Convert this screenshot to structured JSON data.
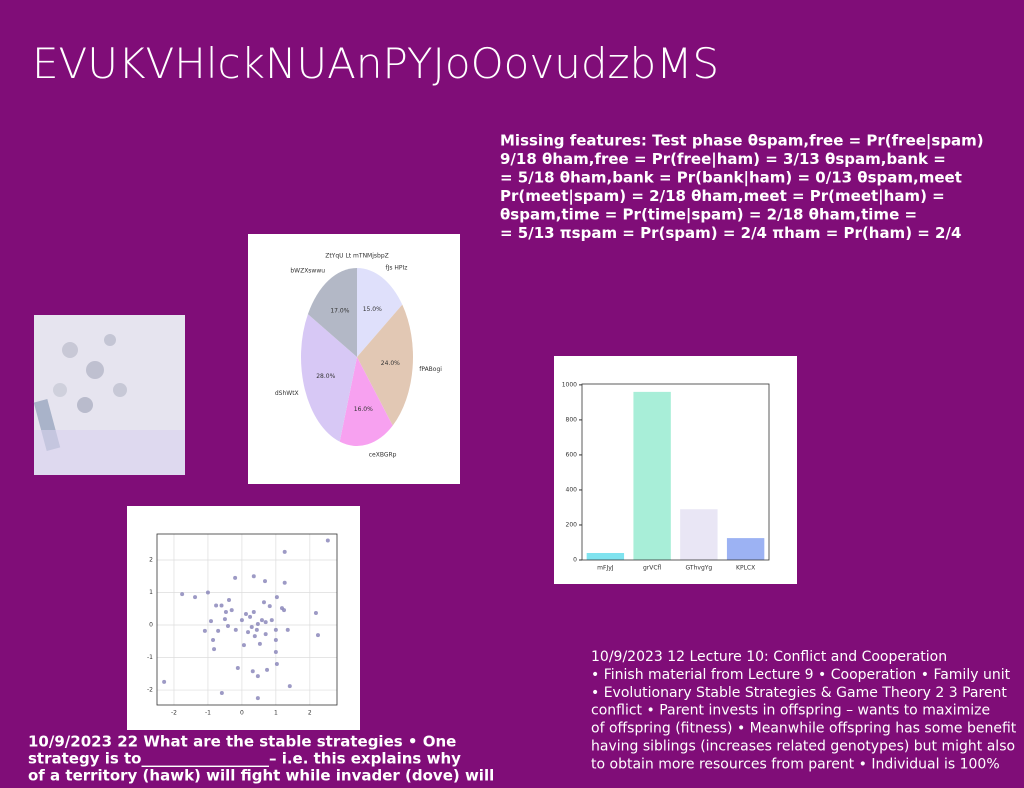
{
  "title": "EVUKVHlckNUAnPYJoOovudzbMS",
  "text_top_right": [
    "Missing features: Test phase θspam,free = Pr(free|spam)",
    "9/18 θham,free = Pr(free|ham) = 3/13 θspam,bank =",
    "= 5/18 θham,bank = Pr(bank|ham) = 0/13 θspam,meet",
    "Pr(meet|spam) = 2/18 θham,meet = Pr(meet|ham) =",
    "θspam,time = Pr(time|spam) = 2/18 θham,time =",
    "= 5/13 πspam = Pr(spam) = 2/4 πham = Pr(ham) = 2/4"
  ],
  "text_bottom_left": [
    "10/9/2023 22 What are the stable strategies • One",
    "strategy is to_________________– i.e. this explains why",
    "of a territory (hawk) will fight while invader (dove) will"
  ],
  "text_bottom_right": [
    "10/9/2023 12 Lecture 10: Conflict and Cooperation",
    "• Finish material from Lecture 9 • Cooperation • Family unit",
    "• Evolutionary Stable Strategies & Game Theory 2 3 Parent",
    "conflict • Parent invests in offspring – wants to maximize",
    "of offspring (fitness) • Meanwhile offspring has some benefit",
    "having siblings (increases related genotypes) but might also",
    "to obtain more resources from parent • Individual is 100%"
  ],
  "chart_data": [
    {
      "type": "pie",
      "title": "ZtYqU  Lt  mTNMjsbpZ",
      "categories": [
        "fJs HPIz",
        "fPABogi",
        "ceXBGRp",
        "dShWtX",
        "bWZXswwu"
      ],
      "values": [
        15.0,
        24.0,
        16.0,
        28.0,
        17.0
      ],
      "value_labels": [
        "15.0%",
        "24.0%",
        "16.0%",
        "28.0%",
        "17.0%"
      ],
      "colors": [
        "#dfe0fb",
        "#e2c8b4",
        "#f7a1f0",
        "#d7c8f5",
        "#b3b8c6"
      ]
    },
    {
      "type": "bar",
      "categories": [
        "mFJyJ",
        "grVCfl",
        "GThvgYg",
        "KPLCX"
      ],
      "values": [
        40,
        960,
        290,
        125
      ],
      "colors": [
        "#7fe3ef",
        "#a8eed8",
        "#e9e6f5",
        "#9cb2f3"
      ],
      "ylim": [
        0,
        1005
      ],
      "yticks": [
        0,
        200,
        400,
        600,
        800,
        1000
      ]
    },
    {
      "type": "scatter",
      "color": "#8c88bb",
      "grid": true,
      "xlim": [
        -2.5,
        2.8
      ],
      "ylim": [
        -2.46,
        2.8
      ],
      "xticks": [
        -2,
        -1,
        0,
        1,
        2
      ],
      "yticks": [
        -2,
        -1,
        0,
        1,
        2
      ],
      "x": [
        2.53,
        1.26,
        -1.76,
        -1.38,
        -1,
        -0.76,
        -0.6,
        -0.2,
        0.35,
        0.68,
        1.26,
        1.03,
        0.65,
        0.82,
        1.18,
        1.24,
        -0.38,
        -0.47,
        -0.3,
        -0.5,
        -0.91,
        -1.09,
        -0.7,
        -0.85,
        -0.82,
        -0.41,
        -0.18,
        0,
        0.12,
        0.24,
        0.35,
        0.47,
        0.59,
        0.7,
        0.18,
        0.38,
        0.44,
        0.53,
        0.7,
        1.0,
        1.0,
        1.35,
        1.0,
        1.03,
        -0.12,
        0.32,
        0.47,
        0.74,
        1.41,
        0.47,
        -0.59,
        -2.29,
        2.18,
        2.24,
        0.88,
        0.29,
        0.06
      ],
      "y": [
        2.6,
        2.25,
        0.95,
        0.86,
        1.0,
        0.6,
        0.6,
        1.45,
        1.5,
        1.35,
        1.3,
        0.86,
        0.7,
        0.58,
        0.52,
        0.46,
        0.77,
        0.4,
        0.46,
        0.18,
        0.12,
        -0.18,
        -0.18,
        -0.46,
        -0.74,
        -0.03,
        -0.15,
        0.15,
        0.34,
        0.25,
        0.4,
        0.03,
        0.15,
        0.09,
        -0.22,
        -0.34,
        -0.15,
        -0.58,
        -0.28,
        -0.15,
        -0.46,
        -0.15,
        -0.83,
        -1.2,
        -1.32,
        -1.42,
        -1.57,
        -1.38,
        -1.88,
        -2.25,
        -2.09,
        -1.75,
        0.37,
        -0.31,
        0.15,
        -0.06,
        -0.62
      ]
    }
  ]
}
